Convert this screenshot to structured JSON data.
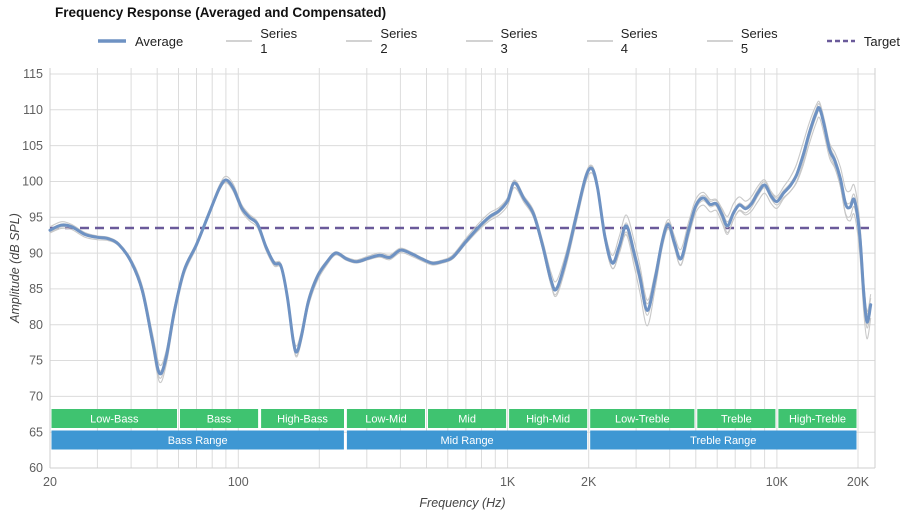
{
  "title": "Frequency Response (Averaged and Compensated)",
  "legend": {
    "items": [
      {
        "label": "Average",
        "color": "#6e92c3",
        "width": 3.5
      },
      {
        "label": "Series 1",
        "color": "#c3c3c3",
        "width": 1.4
      },
      {
        "label": "Series 2",
        "color": "#c3c3c3",
        "width": 1.4
      },
      {
        "label": "Series 3",
        "color": "#c3c3c3",
        "width": 1.4
      },
      {
        "label": "Series 4",
        "color": "#c3c3c3",
        "width": 1.4
      },
      {
        "label": "Series 5",
        "color": "#c3c3c3",
        "width": 1.4
      },
      {
        "label": "Target",
        "color": "#6a5a9a",
        "width": 2.5,
        "dash": "5 3"
      }
    ]
  },
  "colors": {
    "average": "#6e92c3",
    "series": "#c6c6c6",
    "target": "#6a5a9a",
    "grid": "#dcdcdc",
    "border": "#cfcfcf",
    "tick_text": "#606060",
    "band_green": "#3fc370",
    "band_blue": "#3e97d3",
    "band_text": "#ffffff"
  },
  "chart_data": {
    "type": "line",
    "title": "Frequency Response (Averaged and Compensated)",
    "xlabel": "Frequency (Hz)",
    "ylabel": "Amplitude (dB SPL)",
    "xscale": "log",
    "xlim": [
      20,
      23000
    ],
    "ylim": [
      60,
      115.8
    ],
    "target_db": 93.5,
    "y_ticks": [
      60,
      65,
      70,
      75,
      80,
      85,
      90,
      95,
      100,
      105,
      110,
      115
    ],
    "x_ticks": [
      {
        "value": 20,
        "label": "20"
      },
      {
        "value": 100,
        "label": "100"
      },
      {
        "value": 1000,
        "label": "1K"
      },
      {
        "value": 2000,
        "label": "2K"
      },
      {
        "value": 10000,
        "label": "10K"
      },
      {
        "value": 20000,
        "label": "20K"
      }
    ],
    "series_names": [
      "Average",
      "Series 1",
      "Series 2",
      "Series 3",
      "Series 4",
      "Series 5",
      "Target"
    ],
    "series_factors": [
      -1.0,
      -0.55,
      -0.1,
      0.4,
      0.95
    ],
    "points_format": [
      "frequency_hz",
      "average_db",
      "series_spread_db"
    ],
    "points": [
      [
        20,
        93.2,
        0.5
      ],
      [
        22,
        93.9,
        0.5
      ],
      [
        24,
        93.7,
        0.4
      ],
      [
        27,
        92.6,
        0.4
      ],
      [
        30,
        92.2,
        0.4
      ],
      [
        33,
        92.0,
        0.4
      ],
      [
        36,
        91.2,
        0.4
      ],
      [
        40,
        88.8,
        0.5
      ],
      [
        44,
        84.8,
        0.8
      ],
      [
        48,
        77.8,
        1.1
      ],
      [
        51,
        73.2,
        1.3
      ],
      [
        54,
        75.5,
        1.1
      ],
      [
        58,
        82.0,
        0.9
      ],
      [
        63,
        87.6,
        0.7
      ],
      [
        70,
        91.2,
        0.6
      ],
      [
        78,
        95.6,
        0.6
      ],
      [
        85,
        99.0,
        0.6
      ],
      [
        90,
        100.2,
        0.6
      ],
      [
        96,
        99.0,
        0.6
      ],
      [
        103,
        96.3,
        0.5
      ],
      [
        110,
        95.0,
        0.5
      ],
      [
        118,
        94.0,
        0.5
      ],
      [
        127,
        90.8,
        0.6
      ],
      [
        136,
        88.6,
        0.6
      ],
      [
        144,
        88.2,
        0.6
      ],
      [
        152,
        84.0,
        0.8
      ],
      [
        160,
        77.8,
        0.9
      ],
      [
        165,
        76.2,
        0.9
      ],
      [
        172,
        78.6,
        0.8
      ],
      [
        182,
        83.2,
        0.7
      ],
      [
        196,
        86.6,
        0.6
      ],
      [
        212,
        88.6,
        0.5
      ],
      [
        230,
        90.0,
        0.4
      ],
      [
        252,
        89.2,
        0.4
      ],
      [
        275,
        88.8,
        0.35
      ],
      [
        305,
        89.3,
        0.35
      ],
      [
        335,
        89.7,
        0.35
      ],
      [
        365,
        89.4,
        0.35
      ],
      [
        400,
        90.4,
        0.35
      ],
      [
        440,
        89.9,
        0.35
      ],
      [
        480,
        89.2,
        0.35
      ],
      [
        525,
        88.6,
        0.4
      ],
      [
        570,
        88.8,
        0.4
      ],
      [
        625,
        89.4,
        0.45
      ],
      [
        700,
        91.6,
        0.5
      ],
      [
        780,
        93.6,
        0.55
      ],
      [
        860,
        95.1,
        0.6
      ],
      [
        930,
        95.9,
        0.6
      ],
      [
        1000,
        97.3,
        0.7
      ],
      [
        1060,
        99.8,
        0.8
      ],
      [
        1150,
        97.6,
        0.8
      ],
      [
        1250,
        95.4,
        0.9
      ],
      [
        1350,
        91.0,
        1.0
      ],
      [
        1450,
        86.2,
        1.2
      ],
      [
        1520,
        85.0,
        1.2
      ],
      [
        1650,
        89.2,
        1.0
      ],
      [
        1800,
        95.2,
        0.9
      ],
      [
        1950,
        100.6,
        0.8
      ],
      [
        2060,
        101.8,
        0.8
      ],
      [
        2160,
        99.0,
        0.9
      ],
      [
        2300,
        92.2,
        1.2
      ],
      [
        2450,
        88.6,
        1.5
      ],
      [
        2600,
        91.0,
        1.6
      ],
      [
        2760,
        93.8,
        1.6
      ],
      [
        2950,
        90.0,
        1.9
      ],
      [
        3100,
        86.6,
        2.1
      ],
      [
        3300,
        82.0,
        2.3
      ],
      [
        3520,
        86.2,
        1.8
      ],
      [
        3750,
        91.6,
        1.4
      ],
      [
        3950,
        94.0,
        1.2
      ],
      [
        4160,
        91.5,
        1.3
      ],
      [
        4400,
        89.2,
        1.5
      ],
      [
        4700,
        93.2,
        1.2
      ],
      [
        5000,
        96.6,
        1.0
      ],
      [
        5320,
        97.7,
        1.0
      ],
      [
        5650,
        96.8,
        1.1
      ],
      [
        5950,
        96.9,
        1.2
      ],
      [
        6250,
        95.4,
        1.8
      ],
      [
        6550,
        93.8,
        2.3
      ],
      [
        6900,
        95.6,
        1.8
      ],
      [
        7250,
        96.7,
        1.3
      ],
      [
        7650,
        96.2,
        1.1
      ],
      [
        8050,
        96.9,
        1.1
      ],
      [
        8500,
        98.4,
        1.2
      ],
      [
        9000,
        99.5,
        1.2
      ],
      [
        9500,
        98.0,
        1.3
      ],
      [
        10000,
        97.2,
        1.5
      ],
      [
        10600,
        98.4,
        1.5
      ],
      [
        11200,
        99.4,
        1.6
      ],
      [
        11800,
        100.8,
        1.7
      ],
      [
        12500,
        103.6,
        1.8
      ],
      [
        13200,
        106.8,
        1.6
      ],
      [
        14000,
        109.6,
        1.4
      ],
      [
        14400,
        110.2,
        1.4
      ],
      [
        15000,
        107.8,
        1.7
      ],
      [
        15700,
        104.4,
        1.9
      ],
      [
        16400,
        102.9,
        2.0
      ],
      [
        17200,
        100.4,
        2.2
      ],
      [
        18000,
        96.8,
        2.4
      ],
      [
        18700,
        96.4,
        2.4
      ],
      [
        19400,
        97.4,
        2.2
      ],
      [
        20300,
        92.5,
        2.5
      ],
      [
        21000,
        84.5,
        2.8
      ],
      [
        21600,
        80.4,
        3.0
      ],
      [
        22300,
        82.8,
        3.0
      ]
    ],
    "bands": {
      "sub": [
        {
          "label": "Low-Bass",
          "from": 20,
          "to": 60
        },
        {
          "label": "Bass",
          "from": 60,
          "to": 120
        },
        {
          "label": "High-Bass",
          "from": 120,
          "to": 250
        },
        {
          "label": "Low-Mid",
          "from": 250,
          "to": 500
        },
        {
          "label": "Mid",
          "from": 500,
          "to": 1000
        },
        {
          "label": "High-Mid",
          "from": 1000,
          "to": 2000
        },
        {
          "label": "Low-Treble",
          "from": 2000,
          "to": 5000
        },
        {
          "label": "Treble",
          "from": 5000,
          "to": 10000
        },
        {
          "label": "High-Treble",
          "from": 10000,
          "to": 20000
        }
      ],
      "main": [
        {
          "label": "Bass Range",
          "from": 20,
          "to": 250
        },
        {
          "label": "Mid Range",
          "from": 250,
          "to": 2000
        },
        {
          "label": "Treble Range",
          "from": 2000,
          "to": 20000
        }
      ]
    }
  }
}
